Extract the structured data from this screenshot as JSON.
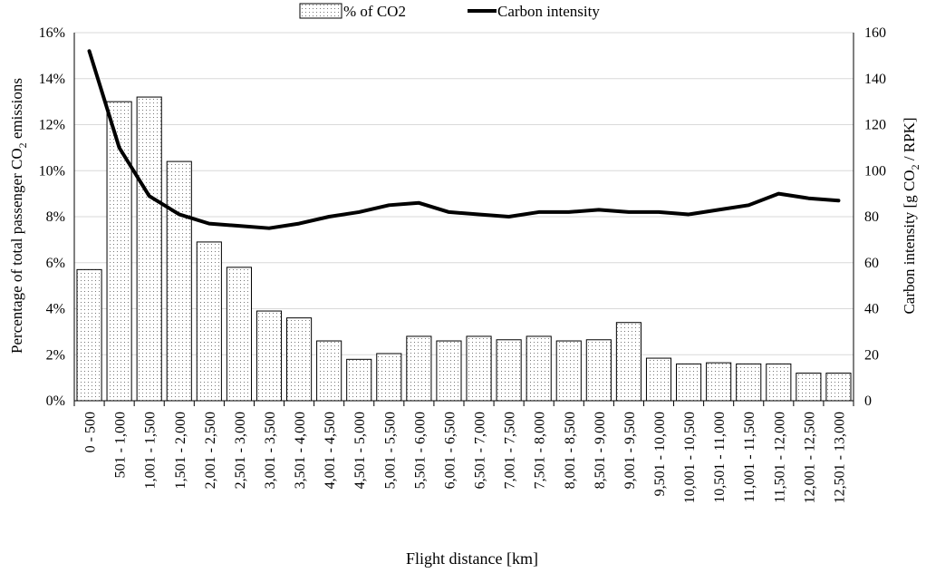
{
  "chart_data": {
    "type": "bar",
    "xlabel": "Flight distance [km]",
    "ylabel_left": {
      "pre": "Percentage of total passenger CO",
      "sub": "2",
      "post": " emissions"
    },
    "ylabel_right": {
      "pre": "Carbon intensity [g CO",
      "sub": "2",
      "post": " / RPK]"
    },
    "y_left": {
      "min": 0,
      "max": 16,
      "step": 2,
      "format": "percent",
      "ticks": [
        "0%",
        "2%",
        "4%",
        "6%",
        "8%",
        "10%",
        "12%",
        "14%",
        "16%"
      ]
    },
    "y_right": {
      "min": 0,
      "max": 160,
      "step": 20,
      "ticks": [
        "0",
        "20",
        "40",
        "60",
        "80",
        "100",
        "120",
        "140",
        "160"
      ]
    },
    "grid": true,
    "legend": {
      "placement": "top-center"
    },
    "categories": [
      "0 - 500",
      "501 - 1,000",
      "1,001 - 1,500",
      "1,501 - 2,000",
      "2,001 - 2,500",
      "2,501 - 3,000",
      "3,001 - 3,500",
      "3,501 - 4,000",
      "4,001 - 4,500",
      "4,501 - 5,000",
      "5,001 - 5,500",
      "5,501 - 6,000",
      "6,001 - 6,500",
      "6,501 - 7,000",
      "7,001 - 7,500",
      "7,501 - 8,000",
      "8,001 - 8,500",
      "8,501 - 9,000",
      "9,001 - 9,500",
      "9,501 - 10,000",
      "10,001 - 10,500",
      "10,501 - 11,000",
      "11,001 - 11,500",
      "11,501 - 12,000",
      "12,001 - 12,500",
      "12,501 - 13,000"
    ],
    "series": [
      {
        "name": "% of CO2",
        "type": "bar",
        "axis": "left",
        "pattern": "dots",
        "values": [
          5.7,
          13.0,
          13.2,
          10.4,
          6.9,
          5.8,
          3.9,
          3.6,
          2.6,
          1.8,
          2.05,
          2.8,
          2.6,
          2.8,
          2.65,
          2.8,
          2.6,
          2.65,
          3.4,
          1.85,
          1.6,
          1.65,
          1.6,
          1.6,
          1.2,
          1.2
        ]
      },
      {
        "name": "Carbon intensity",
        "type": "line",
        "axis": "right",
        "color": "#000000",
        "values": [
          152,
          110,
          89,
          81,
          77,
          76,
          75,
          77,
          80,
          82,
          85,
          86,
          82,
          81,
          80,
          82,
          82,
          83,
          82,
          82,
          81,
          83,
          85,
          90,
          88,
          87
        ]
      }
    ]
  }
}
